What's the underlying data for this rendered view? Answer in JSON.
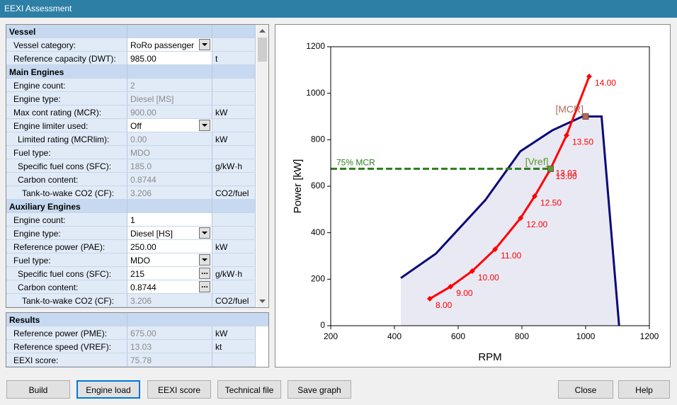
{
  "window": {
    "title": "EEXI Assessment"
  },
  "grid": {
    "sections": [
      {
        "title": "Vessel",
        "rows": [
          {
            "label": "Vessel category:",
            "value": "RoRo passenger",
            "control": "combo"
          },
          {
            "label": "Reference capacity (DWT):",
            "value": "985.00",
            "unit": "t",
            "control": "edit"
          }
        ]
      },
      {
        "title": "Main Engines",
        "rows": [
          {
            "label": "Engine count:",
            "value": "2"
          },
          {
            "label": "Engine type:",
            "value": "Diesel [MS]"
          },
          {
            "label": "Max cont rating (MCR):",
            "value": "900.00",
            "unit": "kW"
          },
          {
            "label": "Engine limiter used:",
            "value": "Off",
            "control": "combo"
          },
          {
            "label": "Limited rating (MCRlim):",
            "value": "0.00",
            "unit": "kW",
            "indent": 1
          },
          {
            "label": "Fuel type:",
            "value": "MDO"
          },
          {
            "label": "Specific fuel cons (SFC):",
            "value": "185.0",
            "unit": "g/kW·h",
            "indent": 1
          },
          {
            "label": "Carbon content:",
            "value": "0.8744",
            "indent": 1
          },
          {
            "label": "Tank-to-wake CO2 (CF):",
            "value": "3.206",
            "unit": "CO2/fuel",
            "indent": 2
          }
        ]
      },
      {
        "title": "Auxiliary Engines",
        "rows": [
          {
            "label": "Engine count:",
            "value": "1",
            "control": "edit"
          },
          {
            "label": "Engine type:",
            "value": "Diesel [HS]",
            "control": "combo"
          },
          {
            "label": "Reference power (PAE):",
            "value": "250.00",
            "unit": "kW",
            "control": "edit"
          },
          {
            "label": "Fuel type:",
            "value": "MDO",
            "control": "combo"
          },
          {
            "label": "Specific fuel cons (SFC):",
            "value": "215",
            "unit": "g/kW·h",
            "control": "edit",
            "button": "...",
            "indent": 1
          },
          {
            "label": "Carbon content:",
            "value": "0.8744",
            "control": "edit",
            "button": "...",
            "indent": 1
          },
          {
            "label": "Tank-to-wake CO2 (CF):",
            "value": "3.206",
            "unit": "CO2/fuel",
            "indent": 2
          }
        ]
      }
    ]
  },
  "results": {
    "title": "Results",
    "rows": [
      {
        "label": "Reference power (PME):",
        "value": "675.00",
        "unit": "kW"
      },
      {
        "label": "Reference speed (VREF):",
        "value": "13.03",
        "unit": "kt"
      },
      {
        "label": "EEXI score:",
        "value": "75.78"
      }
    ]
  },
  "chart_data": {
    "type": "line",
    "xlabel": "RPM",
    "ylabel": "Power [kW]",
    "xlim": [
      200,
      1200
    ],
    "ylim": [
      0,
      1200
    ],
    "xticks": [
      200,
      400,
      600,
      800,
      1000,
      1200
    ],
    "yticks": [
      0,
      200,
      400,
      600,
      800,
      1000,
      1200
    ],
    "series": [
      {
        "color": "#0a0a78",
        "fill": "#e9e9f4",
        "x": [
          420,
          530,
          685,
          795,
          895,
          990,
          1050,
          1105
        ],
        "values": [
          205,
          310,
          540,
          750,
          840,
          900,
          900,
          0
        ]
      },
      {
        "color": "#ff0000",
        "marker": "diamond",
        "x": [
          511,
          576,
          644,
          716,
          796,
          840,
          888,
          940,
          1011
        ],
        "values": [
          116,
          168,
          235,
          329,
          463,
          557,
          670,
          819,
          1072
        ],
        "point_labels": [
          "8.00",
          "9.00",
          "10.00",
          "11.00",
          "12.00",
          "12.50",
          "13.00",
          "13.50",
          "14.00"
        ]
      }
    ],
    "reference_line": {
      "label": "75% MCR",
      "value": 675,
      "x": [
        200,
        890
      ],
      "color": "#2e7d1e"
    },
    "markers": [
      {
        "label": "[MCR]",
        "x": 1000,
        "value": 900,
        "color": "#b06a5c"
      },
      {
        "label": "[Vref]",
        "speed_label": "13.03",
        "x": 890,
        "value": 675,
        "color": "#5a9a2c"
      }
    ]
  },
  "buttons": [
    {
      "label": "Build"
    },
    {
      "label": "Engine load",
      "focused": true
    },
    {
      "label": "EEXI score"
    },
    {
      "label": "Technical file"
    },
    {
      "label": "Save graph"
    },
    {
      "label": "Close"
    },
    {
      "label": "Help"
    }
  ]
}
